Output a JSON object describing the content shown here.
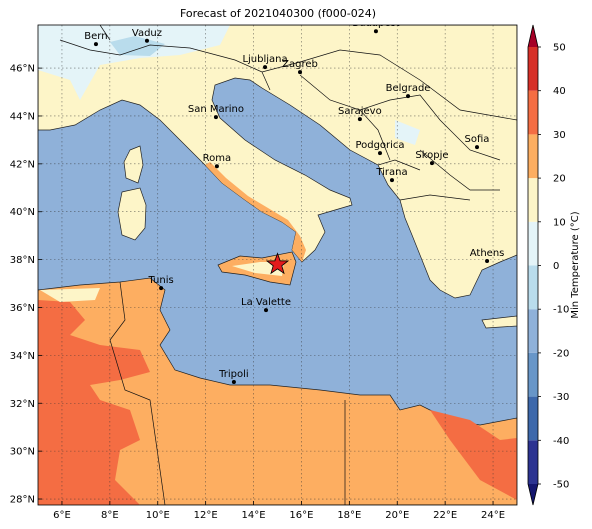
{
  "title": "Forecast of 2021040300 (f000-024)",
  "map": {
    "lonlim": [
      5,
      25
    ],
    "latlim": [
      27.75,
      47.8
    ],
    "lon_ticks": [
      {
        "value": 6,
        "label": "6°E"
      },
      {
        "value": 8,
        "label": "8°E"
      },
      {
        "value": 10,
        "label": "10°E"
      },
      {
        "value": 12,
        "label": "12°E"
      },
      {
        "value": 14,
        "label": "14°E"
      },
      {
        "value": 16,
        "label": "16°E"
      },
      {
        "value": 18,
        "label": "18°E"
      },
      {
        "value": 20,
        "label": "20°E"
      },
      {
        "value": 22,
        "label": "22°E"
      },
      {
        "value": 24,
        "label": "24°E"
      }
    ],
    "lat_ticks": [
      {
        "value": 28,
        "label": "28°N"
      },
      {
        "value": 30,
        "label": "30°N"
      },
      {
        "value": 32,
        "label": "32°N"
      },
      {
        "value": 34,
        "label": "34°N"
      },
      {
        "value": 36,
        "label": "36°N"
      },
      {
        "value": 38,
        "label": "38°N"
      },
      {
        "value": 40,
        "label": "40°N"
      },
      {
        "value": 42,
        "label": "42°N"
      },
      {
        "value": 44,
        "label": "44°N"
      },
      {
        "value": 46,
        "label": "46°N"
      }
    ],
    "grid": true,
    "star": {
      "lon": 15.0,
      "lat": 37.8,
      "color": "#e31a1c"
    }
  },
  "cities": [
    {
      "name": "Bern",
      "lon": 7.42,
      "lat": 47.0
    },
    {
      "name": "Vaduz",
      "lon": 9.55,
      "lat": 47.14
    },
    {
      "name": "Budapest",
      "lon": 19.11,
      "lat": 47.54
    },
    {
      "name": "Ljubljana",
      "lon": 14.48,
      "lat": 46.04
    },
    {
      "name": "Zagreb",
      "lon": 15.94,
      "lat": 45.83
    },
    {
      "name": "Belgrade",
      "lon": 20.45,
      "lat": 44.83
    },
    {
      "name": "San Marino",
      "lon": 12.43,
      "lat": 43.95
    },
    {
      "name": "Sarajevo",
      "lon": 18.44,
      "lat": 43.87
    },
    {
      "name": "Sofia",
      "lon": 23.33,
      "lat": 42.7
    },
    {
      "name": "Podgorica",
      "lon": 19.28,
      "lat": 42.45
    },
    {
      "name": "Skopje",
      "lon": 21.45,
      "lat": 42.03
    },
    {
      "name": "Roma",
      "lon": 12.47,
      "lat": 41.9
    },
    {
      "name": "Tirana",
      "lon": 19.78,
      "lat": 41.32
    },
    {
      "name": "Athens",
      "lon": 23.75,
      "lat": 37.94
    },
    {
      "name": "Tunis",
      "lon": 10.14,
      "lat": 36.81
    },
    {
      "name": "La Valette",
      "lon": 14.52,
      "lat": 35.89
    },
    {
      "name": "Tripoli",
      "lon": 13.18,
      "lat": 32.89
    }
  ],
  "colorbar": {
    "label": "Min Temperature (°C)",
    "clim": [
      -50,
      50
    ],
    "ticks": [
      -50,
      -40,
      -30,
      -20,
      -10,
      0,
      10,
      20,
      30,
      40,
      50
    ],
    "colors": [
      "#2c3391",
      "#3d68ab",
      "#6896c8",
      "#8fb1d9",
      "#b9dcec",
      "#e4f4f8",
      "#fdf5c8",
      "#fdae61",
      "#f46d43",
      "#d73027"
    ],
    "under": "#14166e",
    "over": "#a50026"
  }
}
